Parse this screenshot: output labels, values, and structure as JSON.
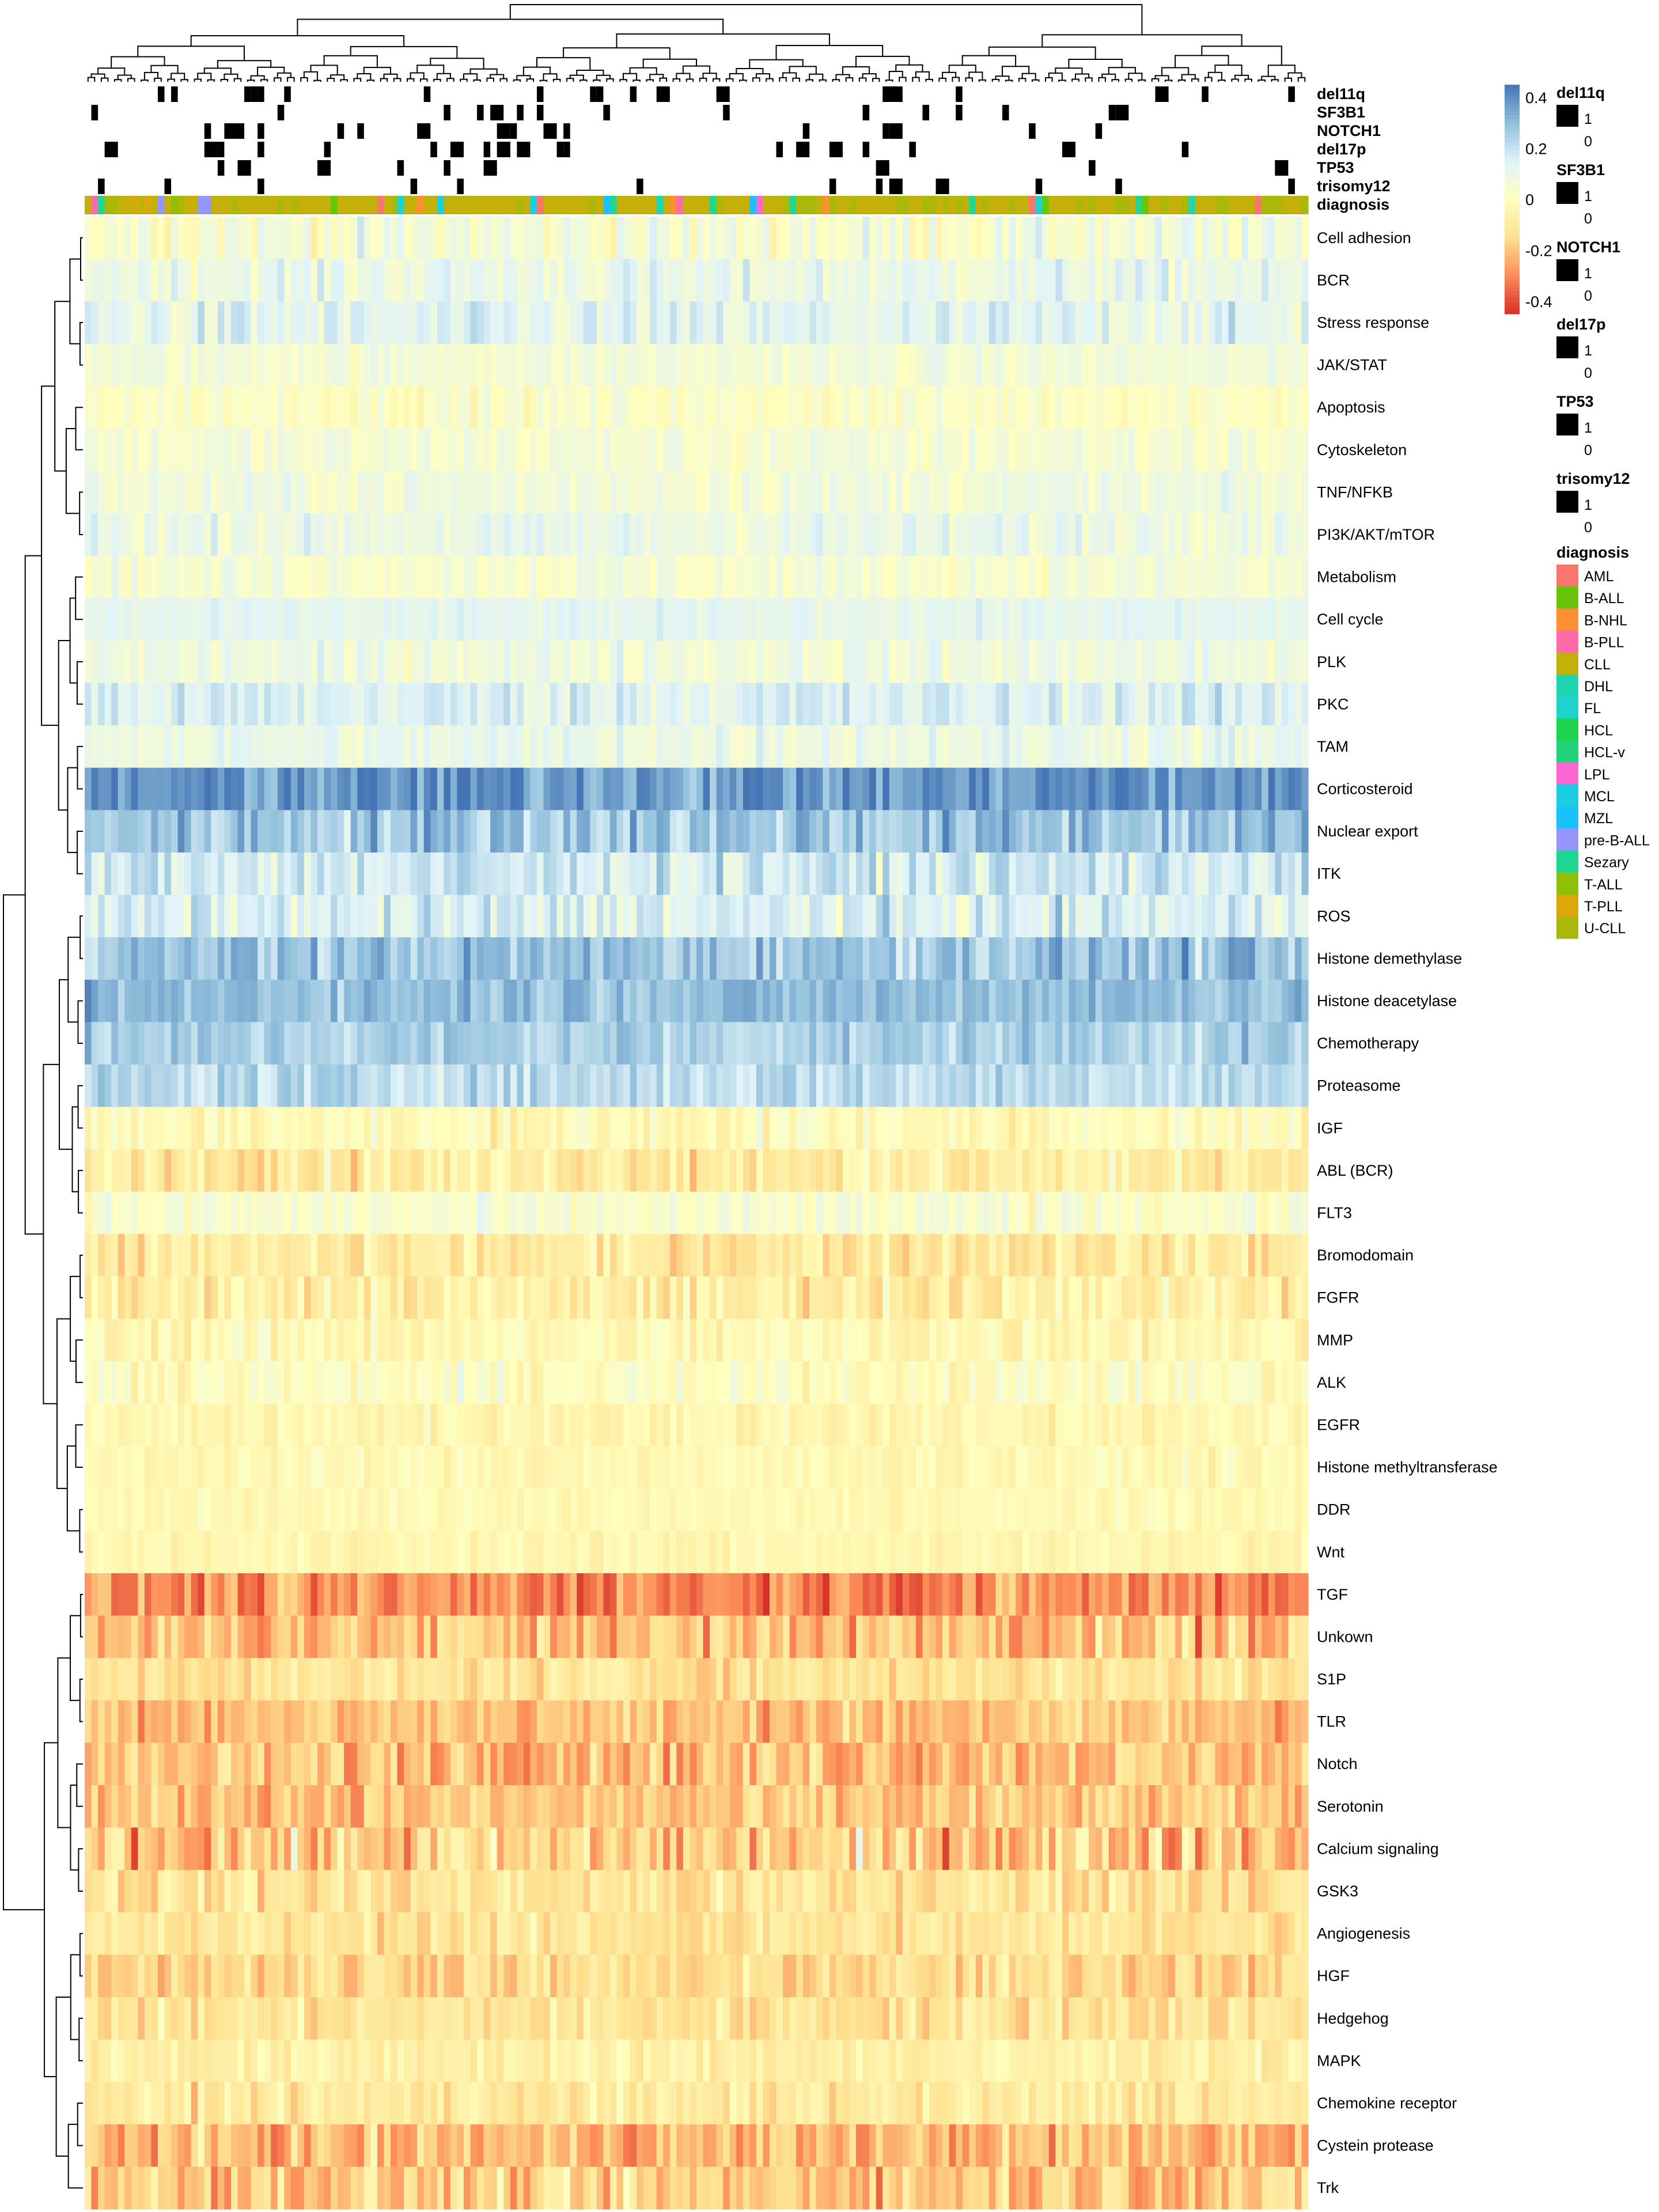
{
  "chart_data": {
    "type": "heatmap",
    "title": "",
    "n_samples": 184,
    "value_range": [
      -0.45,
      0.45
    ],
    "colorbar": {
      "ticks": [
        "0.4",
        "0.2",
        "0",
        "-0.2",
        "-0.4"
      ],
      "tick_values": [
        0.4,
        0.2,
        0,
        -0.2,
        -0.4
      ],
      "colors": [
        "#d73027",
        "#fc8d59",
        "#fee090",
        "#ffffbf",
        "#e0f3f8",
        "#91bfdb",
        "#4575b4"
      ]
    },
    "annotation_tracks": [
      {
        "name": "del11q",
        "density": 0.12
      },
      {
        "name": "SF3B1",
        "density": 0.1
      },
      {
        "name": "NOTCH1",
        "density": 0.1
      },
      {
        "name": "del17p",
        "density": 0.08
      },
      {
        "name": "TP53",
        "density": 0.1
      },
      {
        "name": "trisomy12",
        "density": 0.1
      }
    ],
    "binary_legend": {
      "on": "1",
      "off": "0"
    },
    "diagnosis_label": "diagnosis",
    "diagnosis": [
      {
        "name": "AML",
        "color": "#f8766d"
      },
      {
        "name": "B-ALL",
        "color": "#6ac40a"
      },
      {
        "name": "B-NHL",
        "color": "#fb9032"
      },
      {
        "name": "B-PLL",
        "color": "#fb6aa9"
      },
      {
        "name": "CLL",
        "color": "#c4b00a"
      },
      {
        "name": "DHL",
        "color": "#1fd6b1"
      },
      {
        "name": "FL",
        "color": "#1ed3cc"
      },
      {
        "name": "HCL",
        "color": "#1fd350"
      },
      {
        "name": "HCL-v",
        "color": "#1fd47a"
      },
      {
        "name": "LPL",
        "color": "#fc66d4"
      },
      {
        "name": "MCL",
        "color": "#1ccfe0"
      },
      {
        "name": "MZL",
        "color": "#19c2fc"
      },
      {
        "name": "pre-B-ALL",
        "color": "#9596fb"
      },
      {
        "name": "Sezary",
        "color": "#1fd692"
      },
      {
        "name": "T-ALL",
        "color": "#8fbf07"
      },
      {
        "name": "T-PLL",
        "color": "#dba80a"
      },
      {
        "name": "U-CLL",
        "color": "#aab80a"
      }
    ],
    "rows": [
      {
        "label": "Cell adhesion",
        "mean": 0.05,
        "spread": 0.1
      },
      {
        "label": "BCR",
        "mean": 0.1,
        "spread": 0.08
      },
      {
        "label": "Stress response",
        "mean": 0.12,
        "spread": 0.09
      },
      {
        "label": "JAK/STAT",
        "mean": 0.06,
        "spread": 0.05
      },
      {
        "label": "Apoptosis",
        "mean": 0.02,
        "spread": 0.06
      },
      {
        "label": "Cytoskeleton",
        "mean": 0.05,
        "spread": 0.06
      },
      {
        "label": "TNF/NFKB",
        "mean": 0.07,
        "spread": 0.06
      },
      {
        "label": "PI3K/AKT/mTOR",
        "mean": 0.1,
        "spread": 0.07
      },
      {
        "label": "Metabolism",
        "mean": 0.05,
        "spread": 0.06
      },
      {
        "label": "Cell cycle",
        "mean": 0.12,
        "spread": 0.04
      },
      {
        "label": "PLK",
        "mean": 0.08,
        "spread": 0.07
      },
      {
        "label": "PKC",
        "mean": 0.15,
        "spread": 0.08
      },
      {
        "label": "TAM",
        "mean": 0.1,
        "spread": 0.07
      },
      {
        "label": "Corticosteroid",
        "mean": 0.38,
        "spread": 0.12
      },
      {
        "label": "Nuclear export",
        "mean": 0.28,
        "spread": 0.12
      },
      {
        "label": "ITK",
        "mean": 0.18,
        "spread": 0.1
      },
      {
        "label": "ROS",
        "mean": 0.15,
        "spread": 0.1
      },
      {
        "label": "Histone demethylase",
        "mean": 0.28,
        "spread": 0.1
      },
      {
        "label": "Histone deacetylase",
        "mean": 0.3,
        "spread": 0.08
      },
      {
        "label": "Chemotherapy",
        "mean": 0.25,
        "spread": 0.08
      },
      {
        "label": "Proteasome",
        "mean": 0.22,
        "spread": 0.08
      },
      {
        "label": "IGF",
        "mean": -0.02,
        "spread": 0.08
      },
      {
        "label": "ABL (BCR)",
        "mean": -0.08,
        "spread": 0.1
      },
      {
        "label": "FLT3",
        "mean": 0.03,
        "spread": 0.07
      },
      {
        "label": "Bromodomain",
        "mean": -0.1,
        "spread": 0.09
      },
      {
        "label": "FGFR",
        "mean": -0.08,
        "spread": 0.1
      },
      {
        "label": "MMP",
        "mean": -0.03,
        "spread": 0.08
      },
      {
        "label": "ALK",
        "mean": 0.0,
        "spread": 0.07
      },
      {
        "label": "EGFR",
        "mean": -0.04,
        "spread": 0.06
      },
      {
        "label": "Histone methyltransferase",
        "mean": -0.03,
        "spread": 0.05
      },
      {
        "label": "DDR",
        "mean": -0.03,
        "spread": 0.04
      },
      {
        "label": "Wnt",
        "mean": -0.04,
        "spread": 0.04
      },
      {
        "label": "TGF",
        "mean": -0.3,
        "spread": 0.12
      },
      {
        "label": "Unkown",
        "mean": -0.2,
        "spread": 0.14
      },
      {
        "label": "S1P",
        "mean": -0.12,
        "spread": 0.08
      },
      {
        "label": "TLR",
        "mean": -0.2,
        "spread": 0.1
      },
      {
        "label": "Notch",
        "mean": -0.2,
        "spread": 0.12
      },
      {
        "label": "Serotonin",
        "mean": -0.2,
        "spread": 0.1
      },
      {
        "label": "Calcium signaling",
        "mean": -0.18,
        "spread": 0.18
      },
      {
        "label": "GSK3",
        "mean": -0.12,
        "spread": 0.1
      },
      {
        "label": "Angiogenesis",
        "mean": -0.12,
        "spread": 0.08
      },
      {
        "label": "HGF",
        "mean": -0.15,
        "spread": 0.1
      },
      {
        "label": "Hedgehog",
        "mean": -0.12,
        "spread": 0.09
      },
      {
        "label": "MAPK",
        "mean": -0.07,
        "spread": 0.07
      },
      {
        "label": "Chemokine receptor",
        "mean": -0.1,
        "spread": 0.08
      },
      {
        "label": "Cystein protease",
        "mean": -0.22,
        "spread": 0.12
      },
      {
        "label": "Trk",
        "mean": -0.18,
        "spread": 0.13
      }
    ],
    "xlabel": "",
    "ylabel": ""
  }
}
